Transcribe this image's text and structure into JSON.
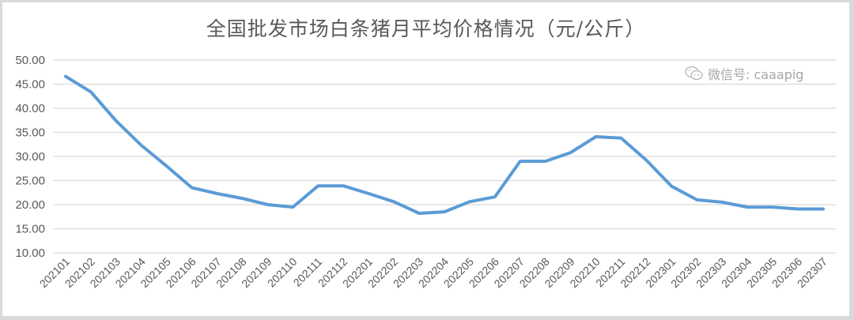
{
  "title": "全国批发市场白条猪月平均价格情况（元/公斤）",
  "watermark": {
    "icon": "wechat-icon",
    "text": "微信号: caaapig"
  },
  "colors": {
    "line": "#5b9bd5",
    "grid": "#d9d9d9",
    "text": "#595959",
    "frame": "#d9d9d9"
  },
  "chart_data": {
    "type": "line",
    "title": "全国批发市场白条猪月平均价格情况（元/公斤）",
    "xlabel": "",
    "ylabel": "",
    "ylim": [
      10,
      50
    ],
    "yticks": [
      "10.00",
      "15.00",
      "20.00",
      "25.00",
      "30.00",
      "35.00",
      "40.00",
      "45.00",
      "50.00"
    ],
    "grid": true,
    "legend": "none",
    "categories": [
      "202101",
      "202102",
      "202103",
      "202104",
      "202105",
      "202106",
      "202107",
      "202108",
      "202109",
      "202110",
      "202111",
      "202112",
      "202201",
      "202202",
      "202203",
      "202204",
      "202205",
      "202206",
      "202207",
      "202208",
      "202209",
      "202210",
      "202211",
      "202212",
      "202301",
      "202302",
      "202303",
      "202304",
      "202305",
      "202306",
      "202307"
    ],
    "series": [
      {
        "name": "白条猪月平均价格",
        "values": [
          46.6,
          43.4,
          37.4,
          32.3,
          28.0,
          23.5,
          22.3,
          21.3,
          20.0,
          19.5,
          23.9,
          23.9,
          22.3,
          20.6,
          18.2,
          18.5,
          20.6,
          21.6,
          29.0,
          29.0,
          30.8,
          34.1,
          33.8,
          29.2,
          23.8,
          21.0,
          20.5,
          19.5,
          19.5,
          19.1,
          19.1
        ]
      }
    ]
  }
}
